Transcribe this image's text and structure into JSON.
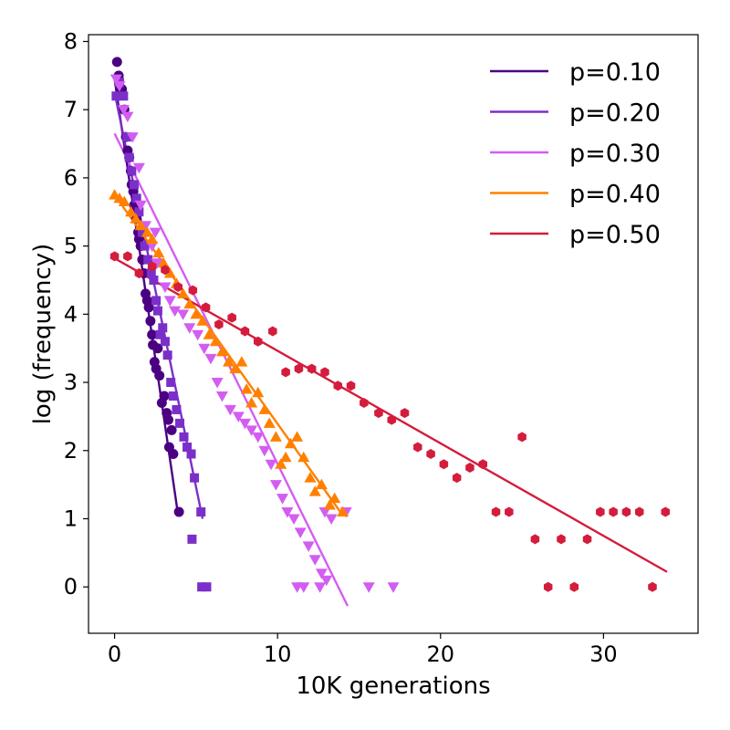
{
  "chart_data": {
    "type": "scatter",
    "xlabel": "10K generations",
    "ylabel": "log (frequency)",
    "xlim": [
      -1.6,
      35.8
    ],
    "ylim": [
      -0.68,
      8.1
    ],
    "xticks": [
      0,
      10,
      20,
      30
    ],
    "yticks": [
      0,
      1,
      2,
      3,
      4,
      5,
      6,
      7,
      8
    ],
    "grid": false,
    "legend_position": "top-right",
    "series": [
      {
        "name": "p=0.10",
        "color": "#4b0082",
        "marker": "circle",
        "fit": [
          [
            0,
            7.45
          ],
          [
            3.9,
            1.05
          ]
        ],
        "points": [
          [
            0.15,
            7.7
          ],
          [
            0.25,
            7.5
          ],
          [
            0.45,
            7.3
          ],
          [
            0.6,
            7.0
          ],
          [
            0.7,
            6.6
          ],
          [
            0.8,
            6.4
          ],
          [
            0.9,
            6.3
          ],
          [
            1.0,
            6.1
          ],
          [
            1.05,
            5.9
          ],
          [
            1.15,
            5.8
          ],
          [
            1.2,
            5.6
          ],
          [
            1.3,
            5.5
          ],
          [
            1.35,
            5.4
          ],
          [
            1.45,
            5.2
          ],
          [
            1.5,
            5.1
          ],
          [
            1.6,
            5.0
          ],
          [
            1.7,
            4.8
          ],
          [
            1.8,
            4.6
          ],
          [
            1.9,
            4.3
          ],
          [
            2.0,
            4.2
          ],
          [
            2.1,
            4.1
          ],
          [
            2.2,
            3.9
          ],
          [
            2.3,
            3.7
          ],
          [
            2.35,
            3.55
          ],
          [
            2.45,
            3.3
          ],
          [
            2.55,
            3.2
          ],
          [
            2.65,
            3.5
          ],
          [
            2.75,
            3.1
          ],
          [
            2.9,
            2.7
          ],
          [
            3.05,
            2.8
          ],
          [
            3.2,
            2.55
          ],
          [
            3.3,
            2.45
          ],
          [
            3.5,
            2.3
          ],
          [
            3.35,
            2.05
          ],
          [
            3.6,
            1.95
          ],
          [
            3.95,
            1.1
          ]
        ]
      },
      {
        "name": "p=0.20",
        "color": "#7b2fc9",
        "marker": "square",
        "fit": [
          [
            0,
            7.25
          ],
          [
            5.4,
            1.0
          ]
        ],
        "points": [
          [
            0.1,
            7.2
          ],
          [
            0.3,
            7.4
          ],
          [
            0.55,
            7.2
          ],
          [
            0.75,
            6.6
          ],
          [
            0.9,
            6.3
          ],
          [
            1.05,
            6.1
          ],
          [
            1.2,
            5.9
          ],
          [
            1.35,
            5.7
          ],
          [
            1.5,
            5.5
          ],
          [
            1.7,
            5.2
          ],
          [
            1.85,
            5.0
          ],
          [
            2.05,
            4.8
          ],
          [
            2.25,
            4.6
          ],
          [
            2.4,
            4.5
          ],
          [
            2.55,
            4.2
          ],
          [
            2.65,
            4.05
          ],
          [
            2.8,
            3.7
          ],
          [
            2.95,
            3.8
          ],
          [
            3.1,
            3.6
          ],
          [
            3.25,
            3.4
          ],
          [
            3.45,
            3.0
          ],
          [
            3.6,
            2.8
          ],
          [
            3.8,
            2.6
          ],
          [
            4.0,
            2.4
          ],
          [
            4.25,
            2.2
          ],
          [
            4.45,
            2.05
          ],
          [
            4.7,
            1.95
          ],
          [
            4.9,
            1.6
          ],
          [
            5.3,
            1.1
          ],
          [
            4.75,
            0.7
          ],
          [
            5.35,
            0.0
          ],
          [
            5.65,
            0.0
          ]
        ]
      },
      {
        "name": "p=0.30",
        "color": "#d35df2",
        "marker": "triangle-down",
        "fit": [
          [
            0,
            6.65
          ],
          [
            14.3,
            -0.28
          ]
        ],
        "points": [
          [
            0.1,
            7.45
          ],
          [
            0.3,
            7.35
          ],
          [
            0.55,
            7.0
          ],
          [
            0.8,
            6.9
          ],
          [
            1.1,
            6.6
          ],
          [
            1.5,
            6.15
          ],
          [
            1.6,
            5.6
          ],
          [
            1.9,
            5.3
          ],
          [
            2.3,
            5.0
          ],
          [
            2.5,
            5.2
          ],
          [
            2.6,
            4.75
          ],
          [
            3.1,
            4.4
          ],
          [
            3.4,
            4.2
          ],
          [
            3.7,
            4.05
          ],
          [
            4.2,
            4.0
          ],
          [
            4.6,
            3.8
          ],
          [
            5.1,
            3.7
          ],
          [
            5.5,
            3.5
          ],
          [
            5.9,
            3.35
          ],
          [
            6.3,
            3.0
          ],
          [
            6.6,
            2.8
          ],
          [
            7.1,
            2.6
          ],
          [
            7.6,
            2.5
          ],
          [
            8.0,
            2.4
          ],
          [
            8.4,
            2.3
          ],
          [
            8.8,
            2.2
          ],
          [
            9.2,
            2.0
          ],
          [
            9.6,
            1.8
          ],
          [
            9.9,
            1.5
          ],
          [
            10.3,
            1.3
          ],
          [
            10.6,
            1.1
          ],
          [
            11.0,
            1.0
          ],
          [
            11.4,
            0.8
          ],
          [
            11.9,
            0.6
          ],
          [
            12.3,
            0.4
          ],
          [
            12.7,
            0.2
          ],
          [
            13.0,
            0.1
          ],
          [
            13.3,
            1.0
          ],
          [
            12.9,
            1.1
          ],
          [
            14.2,
            1.1
          ],
          [
            11.2,
            0.0
          ],
          [
            11.6,
            0.0
          ],
          [
            12.6,
            0.0
          ],
          [
            15.6,
            0.0
          ],
          [
            17.1,
            0.0
          ]
        ]
      },
      {
        "name": "p=0.40",
        "color": "#ff8000",
        "marker": "triangle-up",
        "fit": [
          [
            0,
            5.75
          ],
          [
            14.0,
            1.05
          ]
        ],
        "points": [
          [
            0.0,
            5.75
          ],
          [
            0.3,
            5.7
          ],
          [
            0.6,
            5.65
          ],
          [
            1.0,
            5.5
          ],
          [
            1.3,
            5.4
          ],
          [
            1.6,
            5.3
          ],
          [
            2.0,
            5.2
          ],
          [
            2.3,
            5.1
          ],
          [
            2.7,
            4.9
          ],
          [
            3.0,
            4.75
          ],
          [
            3.4,
            4.6
          ],
          [
            3.8,
            4.45
          ],
          [
            4.2,
            4.3
          ],
          [
            4.6,
            4.15
          ],
          [
            5.0,
            4.0
          ],
          [
            5.4,
            3.9
          ],
          [
            5.8,
            3.7
          ],
          [
            6.2,
            3.6
          ],
          [
            6.6,
            3.45
          ],
          [
            7.0,
            3.3
          ],
          [
            7.4,
            3.2
          ],
          [
            7.8,
            3.3
          ],
          [
            8.1,
            2.9
          ],
          [
            8.4,
            2.7
          ],
          [
            8.8,
            2.85
          ],
          [
            9.2,
            2.6
          ],
          [
            9.5,
            2.4
          ],
          [
            9.9,
            2.2
          ],
          [
            10.2,
            1.8
          ],
          [
            10.5,
            1.9
          ],
          [
            10.8,
            2.1
          ],
          [
            11.2,
            2.2
          ],
          [
            11.6,
            1.9
          ],
          [
            12.0,
            1.6
          ],
          [
            12.3,
            1.4
          ],
          [
            12.7,
            1.5
          ],
          [
            13.2,
            1.2
          ],
          [
            13.5,
            1.3
          ],
          [
            14.0,
            1.1
          ]
        ]
      },
      {
        "name": "p=0.50",
        "color": "#d41c3c",
        "marker": "hexagon",
        "fit": [
          [
            0,
            4.82
          ],
          [
            33.9,
            0.22
          ]
        ],
        "points": [
          [
            0.0,
            4.85
          ],
          [
            0.8,
            4.85
          ],
          [
            1.5,
            4.6
          ],
          [
            2.3,
            4.7
          ],
          [
            3.1,
            4.65
          ],
          [
            3.9,
            4.4
          ],
          [
            4.8,
            4.35
          ],
          [
            5.6,
            4.1
          ],
          [
            6.4,
            3.85
          ],
          [
            7.2,
            3.95
          ],
          [
            8.0,
            3.75
          ],
          [
            8.8,
            3.6
          ],
          [
            9.7,
            3.75
          ],
          [
            10.5,
            3.15
          ],
          [
            11.3,
            3.2
          ],
          [
            12.1,
            3.2
          ],
          [
            12.9,
            3.15
          ],
          [
            13.7,
            2.95
          ],
          [
            14.5,
            2.95
          ],
          [
            15.3,
            2.7
          ],
          [
            16.2,
            2.55
          ],
          [
            17.0,
            2.45
          ],
          [
            17.8,
            2.55
          ],
          [
            18.6,
            2.05
          ],
          [
            19.4,
            1.95
          ],
          [
            20.2,
            1.8
          ],
          [
            21.0,
            1.6
          ],
          [
            21.8,
            1.75
          ],
          [
            22.6,
            1.8
          ],
          [
            23.4,
            1.1
          ],
          [
            24.2,
            1.1
          ],
          [
            25.0,
            2.2
          ],
          [
            25.8,
            0.7
          ],
          [
            26.6,
            0.0
          ],
          [
            27.4,
            0.7
          ],
          [
            28.2,
            0.0
          ],
          [
            29.0,
            0.7
          ],
          [
            29.8,
            1.1
          ],
          [
            30.6,
            1.1
          ],
          [
            31.4,
            1.1
          ],
          [
            32.2,
            1.1
          ],
          [
            33.0,
            0.0
          ],
          [
            33.8,
            1.1
          ]
        ]
      }
    ]
  }
}
